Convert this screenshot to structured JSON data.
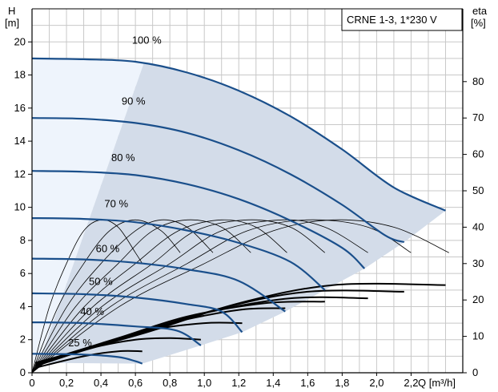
{
  "chart_data": {
    "type": "line",
    "title": "CRNE 1-3, 1*230 V",
    "y_left": {
      "label_top": "H",
      "label_unit": "[m]",
      "ticks": [
        "0",
        "2",
        "4",
        "6",
        "8",
        "10",
        "12",
        "14",
        "16",
        "18",
        "20"
      ],
      "range": [
        0,
        22
      ]
    },
    "y_right": {
      "label_top": "eta",
      "label_unit": "[%]",
      "ticks": [
        "0",
        "10",
        "20",
        "30",
        "40",
        "50",
        "60",
        "70",
        "80"
      ],
      "range": [
        0,
        100
      ]
    },
    "x": {
      "label": "Q [m³/h]",
      "ticks": [
        "0",
        "0,2",
        "0,4",
        "0,6",
        "0,8",
        "1,0",
        "1,2",
        "1,4",
        "1,6",
        "1,8",
        "2,0",
        "2,2"
      ],
      "range": [
        0,
        2.5
      ]
    },
    "grid": true,
    "colors": {
      "head": "#1a4f8b",
      "band": "#d3dce9",
      "band_light": "#eef4fc",
      "eff": "#000000",
      "power": "#000000"
    },
    "head_curves": [
      {
        "name": "100 %",
        "label": "100 %",
        "label_pos": [
          0.58,
          19.9
        ],
        "points": [
          [
            0,
            19.0
          ],
          [
            0.3,
            18.95
          ],
          [
            0.6,
            18.8
          ],
          [
            0.9,
            18.15
          ],
          [
            1.2,
            17.05
          ],
          [
            1.5,
            15.5
          ],
          [
            1.8,
            13.5
          ],
          [
            2.1,
            11.2
          ],
          [
            2.4,
            9.8
          ]
        ]
      },
      {
        "name": "90 %",
        "label": "90 %",
        "label_pos": [
          0.52,
          16.2
        ],
        "points": [
          [
            0,
            15.4
          ],
          [
            0.3,
            15.35
          ],
          [
            0.6,
            15.1
          ],
          [
            0.9,
            14.5
          ],
          [
            1.2,
            13.45
          ],
          [
            1.5,
            12.0
          ],
          [
            1.8,
            10.15
          ],
          [
            2.05,
            8.3
          ],
          [
            2.16,
            7.9
          ]
        ]
      },
      {
        "name": "80 %",
        "label": "80 %",
        "label_pos": [
          0.46,
          12.8
        ],
        "points": [
          [
            0,
            12.2
          ],
          [
            0.3,
            12.15
          ],
          [
            0.6,
            11.95
          ],
          [
            0.9,
            11.4
          ],
          [
            1.2,
            10.5
          ],
          [
            1.5,
            9.2
          ],
          [
            1.8,
            7.55
          ],
          [
            1.93,
            6.3
          ]
        ]
      },
      {
        "name": "70 %",
        "label": "70 %",
        "label_pos": [
          0.42,
          10.0
        ],
        "points": [
          [
            0,
            9.35
          ],
          [
            0.3,
            9.3
          ],
          [
            0.6,
            9.1
          ],
          [
            0.9,
            8.6
          ],
          [
            1.2,
            7.85
          ],
          [
            1.5,
            6.7
          ],
          [
            1.7,
            5.0
          ]
        ]
      },
      {
        "name": "60 %",
        "label": "60 %",
        "label_pos": [
          0.37,
          7.3
        ],
        "points": [
          [
            0,
            6.9
          ],
          [
            0.3,
            6.85
          ],
          [
            0.6,
            6.65
          ],
          [
            0.9,
            6.25
          ],
          [
            1.2,
            5.55
          ],
          [
            1.47,
            3.7
          ]
        ]
      },
      {
        "name": "50 %",
        "label": "50 %",
        "label_pos": [
          0.33,
          5.3
        ],
        "points": [
          [
            0,
            4.8
          ],
          [
            0.3,
            4.75
          ],
          [
            0.6,
            4.55
          ],
          [
            0.9,
            4.15
          ],
          [
            1.1,
            3.7
          ],
          [
            1.22,
            2.45
          ]
        ]
      },
      {
        "name": "40 %",
        "label": "40 %",
        "label_pos": [
          0.28,
          3.5
        ],
        "points": [
          [
            0,
            3.05
          ],
          [
            0.3,
            3.0
          ],
          [
            0.6,
            2.8
          ],
          [
            0.84,
            2.55
          ],
          [
            0.98,
            1.65
          ]
        ]
      },
      {
        "name": "25 %",
        "label": "25 %",
        "label_pos": [
          0.21,
          1.6
        ],
        "points": [
          [
            0,
            1.15
          ],
          [
            0.3,
            1.1
          ],
          [
            0.5,
            0.95
          ],
          [
            0.6,
            0.7
          ],
          [
            0.64,
            0.55
          ]
        ]
      }
    ],
    "efficiency_curves": [
      {
        "points": [
          [
            0,
            0
          ],
          [
            0.1,
            18
          ],
          [
            0.2,
            30
          ],
          [
            0.3,
            39
          ],
          [
            0.4,
            42
          ],
          [
            0.5,
            40
          ],
          [
            0.6,
            33
          ],
          [
            0.64,
            30
          ]
        ]
      },
      {
        "points": [
          [
            0,
            0
          ],
          [
            0.15,
            18
          ],
          [
            0.3,
            30
          ],
          [
            0.45,
            39
          ],
          [
            0.6,
            42
          ],
          [
            0.75,
            39
          ],
          [
            0.86,
            33
          ]
        ]
      },
      {
        "points": [
          [
            0,
            0
          ],
          [
            0.2,
            18
          ],
          [
            0.4,
            30
          ],
          [
            0.6,
            39
          ],
          [
            0.75,
            42
          ],
          [
            0.9,
            40
          ],
          [
            1.05,
            33
          ]
        ]
      },
      {
        "points": [
          [
            0,
            0
          ],
          [
            0.25,
            18
          ],
          [
            0.5,
            30
          ],
          [
            0.7,
            39
          ],
          [
            0.9,
            42
          ],
          [
            1.1,
            40
          ],
          [
            1.27,
            33
          ]
        ]
      },
      {
        "points": [
          [
            0,
            0
          ],
          [
            0.3,
            18
          ],
          [
            0.6,
            30
          ],
          [
            0.85,
            39
          ],
          [
            1.1,
            42
          ],
          [
            1.3,
            40
          ],
          [
            1.48,
            33
          ]
        ]
      },
      {
        "points": [
          [
            0,
            0
          ],
          [
            0.35,
            18
          ],
          [
            0.7,
            30
          ],
          [
            0.95,
            39
          ],
          [
            1.25,
            42
          ],
          [
            1.5,
            40
          ],
          [
            1.7,
            33
          ]
        ]
      },
      {
        "points": [
          [
            0,
            0
          ],
          [
            0.4,
            18
          ],
          [
            0.8,
            30
          ],
          [
            1.1,
            39
          ],
          [
            1.45,
            42
          ],
          [
            1.7,
            40
          ],
          [
            1.95,
            33
          ]
        ]
      },
      {
        "points": [
          [
            0,
            0
          ],
          [
            0.45,
            18
          ],
          [
            0.9,
            30
          ],
          [
            1.25,
            39
          ],
          [
            1.6,
            42
          ],
          [
            1.95,
            40
          ],
          [
            2.2,
            33
          ]
        ]
      },
      {
        "points": [
          [
            0,
            0
          ],
          [
            0.5,
            18
          ],
          [
            1.0,
            30
          ],
          [
            1.4,
            39
          ],
          [
            1.75,
            42
          ],
          [
            2.1,
            40
          ],
          [
            2.42,
            33
          ]
        ]
      }
    ],
    "power_curves": [
      {
        "points": [
          [
            0.02,
            0.3
          ],
          [
            0.3,
            1.0
          ],
          [
            0.5,
            1.3
          ],
          [
            0.64,
            1.3
          ]
        ]
      },
      {
        "points": [
          [
            0.02,
            0.4
          ],
          [
            0.35,
            1.5
          ],
          [
            0.6,
            2.0
          ],
          [
            0.8,
            2.1
          ],
          [
            0.98,
            2.0
          ]
        ]
      },
      {
        "points": [
          [
            0.02,
            0.45
          ],
          [
            0.4,
            1.7
          ],
          [
            0.7,
            2.6
          ],
          [
            1.0,
            3.0
          ],
          [
            1.22,
            3.0
          ]
        ]
      },
      {
        "points": [
          [
            0.02,
            0.5
          ],
          [
            0.45,
            1.9
          ],
          [
            0.8,
            3.0
          ],
          [
            1.2,
            3.8
          ],
          [
            1.47,
            3.9
          ]
        ]
      },
      {
        "points": [
          [
            0.02,
            0.55
          ],
          [
            0.5,
            2.1
          ],
          [
            0.9,
            3.4
          ],
          [
            1.35,
            4.2
          ],
          [
            1.7,
            4.3
          ]
        ]
      },
      {
        "points": [
          [
            0.02,
            0.55
          ],
          [
            0.55,
            2.2
          ],
          [
            1.0,
            3.6
          ],
          [
            1.5,
            4.5
          ],
          [
            1.95,
            4.5
          ]
        ]
      },
      {
        "points": [
          [
            0.02,
            0.6
          ],
          [
            0.6,
            2.3
          ],
          [
            1.1,
            3.9
          ],
          [
            1.6,
            4.9
          ],
          [
            2.16,
            4.9
          ]
        ]
      },
      {
        "points": [
          [
            0.02,
            0.6
          ],
          [
            0.65,
            2.4
          ],
          [
            1.2,
            4.2
          ],
          [
            1.75,
            5.3
          ],
          [
            2.4,
            5.3
          ]
        ]
      }
    ]
  }
}
